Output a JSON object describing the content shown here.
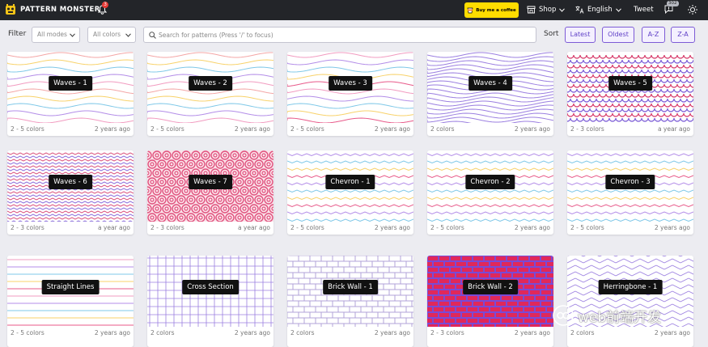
{
  "nav": {
    "brand": "PATTERN MONSTER",
    "bell_badge": "3",
    "coffee_label": "Buy me a coffee",
    "shop": "Shop",
    "language": "English",
    "tweet": "Tweet",
    "feedback_badge": "302"
  },
  "filter": {
    "label": "Filter",
    "modes": "All modes",
    "colors": "All colors",
    "search_placeholder": "Search for patterns (Press '/' to focus)"
  },
  "sort": {
    "label": "Sort",
    "latest": "Latest",
    "oldest": "Oldest",
    "az": "A-Z",
    "za": "Z-A"
  },
  "patterns": [
    {
      "name": "Waves - 1",
      "colors": "2 - 5 colors",
      "age": "2 years ago",
      "kind": "waves",
      "palette": [
        "#f4a6a6",
        "#f8d26a",
        "#7fc8e8",
        "#b38de8",
        "#f29bc0"
      ]
    },
    {
      "name": "Waves - 2",
      "colors": "2 - 5 colors",
      "age": "2 years ago",
      "kind": "waves",
      "palette": [
        "#f4a6a6",
        "#f8d26a",
        "#7fc8e8",
        "#b38de8",
        "#f29bc0"
      ]
    },
    {
      "name": "Waves - 3",
      "colors": "2 - 5 colors",
      "age": "2 years ago",
      "kind": "waves",
      "palette": [
        "#f29bc0",
        "#b38de8",
        "#7fc8e8",
        "#f8d26a",
        "#e85a8a"
      ]
    },
    {
      "name": "Waves - 4",
      "colors": "2 colors",
      "age": "2 years ago",
      "kind": "waves-dense",
      "palette": [
        "#9b7fe0"
      ]
    },
    {
      "name": "Waves - 5",
      "colors": "2 - 3 colors",
      "age": "a year ago",
      "kind": "scales",
      "palette": [
        "#d63a6a",
        "#7a5ad6"
      ]
    },
    {
      "name": "Waves - 6",
      "colors": "2 - 3 colors",
      "age": "a year ago",
      "kind": "zigzag-dense",
      "palette": [
        "#d63a6a",
        "#7a5ad6"
      ]
    },
    {
      "name": "Waves - 7",
      "colors": "2 - 3 colors",
      "age": "a year ago",
      "kind": "spirals",
      "palette": [
        "#e0527e"
      ]
    },
    {
      "name": "Chevron - 1",
      "colors": "2 - 5 colors",
      "age": "2 years ago",
      "kind": "chevron",
      "palette": [
        "#b38de8",
        "#7fc8e8",
        "#f8d26a",
        "#e85a8a"
      ]
    },
    {
      "name": "Chevron - 2",
      "colors": "2 - 5 colors",
      "age": "2 years ago",
      "kind": "chevron",
      "palette": [
        "#b38de8",
        "#7fc8e8",
        "#f8d26a",
        "#e85a8a"
      ]
    },
    {
      "name": "Chevron - 3",
      "colors": "2 - 5 colors",
      "age": "2 years ago",
      "kind": "chevron",
      "palette": [
        "#b38de8",
        "#7fc8e8",
        "#f8d26a",
        "#e85a8a"
      ]
    },
    {
      "name": "Straight Lines",
      "colors": "2 - 5 colors",
      "age": "2 years ago",
      "kind": "lines",
      "palette": [
        "#f29bc0",
        "#b38de8",
        "#7fc8e8",
        "#f8d26a",
        "#e85a8a"
      ]
    },
    {
      "name": "Cross Section",
      "colors": "2 colors",
      "age": "2 years ago",
      "kind": "grid",
      "palette": [
        "#9b7fe0"
      ]
    },
    {
      "name": "Brick Wall - 1",
      "colors": "2 colors",
      "age": "2 years ago",
      "kind": "brick",
      "palette": [
        "#b0a0d8"
      ]
    },
    {
      "name": "Brick Wall - 2",
      "colors": "2 - 3 colors",
      "age": "2 years ago",
      "kind": "brick-fill",
      "palette": [
        "#e0285a",
        "#7a4ad6"
      ]
    },
    {
      "name": "Herringbone - 1",
      "colors": "2 colors",
      "age": "2 years ago",
      "kind": "herringbone",
      "palette": [
        "#9b7fe0"
      ]
    }
  ],
  "watermark": "web前端开发"
}
